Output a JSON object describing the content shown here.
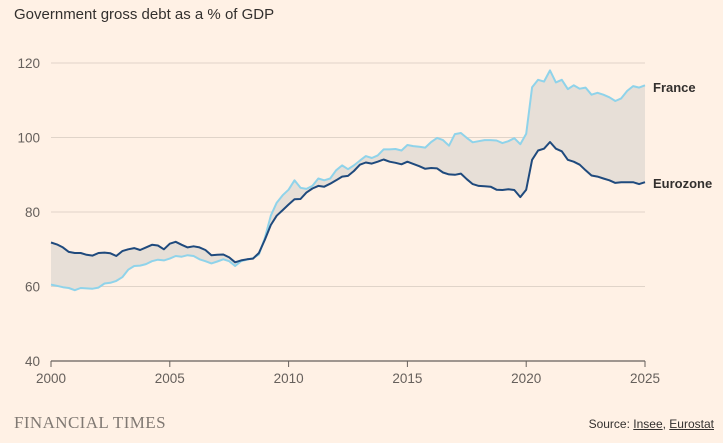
{
  "colors": {
    "background": "#FFF1E5",
    "france": "#8FD3EA",
    "eurozone": "#1F4A7D",
    "fill": "#E7DFD7",
    "grid": "#E0D4C9",
    "axis": "#66605C"
  },
  "footer": {
    "brand": "FINANCIAL TIMES",
    "source_prefix": "Source: ",
    "source_insee": "Insee",
    "source_sep": ", ",
    "source_eurostat": "Eurostat"
  },
  "chart_data": {
    "type": "line",
    "title": "Government gross debt as a % of GDP",
    "xlabel": "",
    "ylabel": "",
    "xlim": [
      2000,
      2025
    ],
    "ylim": [
      40,
      120
    ],
    "x_ticks": [
      2000,
      2005,
      2010,
      2015,
      2020,
      2025
    ],
    "y_ticks": [
      40,
      60,
      80,
      100,
      120
    ],
    "grid": true,
    "x": [
      2000.0,
      2000.25,
      2000.5,
      2000.75,
      2001.0,
      2001.25,
      2001.5,
      2001.75,
      2002.0,
      2002.25,
      2002.5,
      2002.75,
      2003.0,
      2003.25,
      2003.5,
      2003.75,
      2004.0,
      2004.25,
      2004.5,
      2004.75,
      2005.0,
      2005.25,
      2005.5,
      2005.75,
      2006.0,
      2006.25,
      2006.5,
      2006.75,
      2007.0,
      2007.25,
      2007.5,
      2007.75,
      2008.0,
      2008.25,
      2008.5,
      2008.75,
      2009.0,
      2009.25,
      2009.5,
      2009.75,
      2010.0,
      2010.25,
      2010.5,
      2010.75,
      2011.0,
      2011.25,
      2011.5,
      2011.75,
      2012.0,
      2012.25,
      2012.5,
      2012.75,
      2013.0,
      2013.25,
      2013.5,
      2013.75,
      2014.0,
      2014.25,
      2014.5,
      2014.75,
      2015.0,
      2015.25,
      2015.5,
      2015.75,
      2016.0,
      2016.25,
      2016.5,
      2016.75,
      2017.0,
      2017.25,
      2017.5,
      2017.75,
      2018.0,
      2018.25,
      2018.5,
      2018.75,
      2019.0,
      2019.25,
      2019.5,
      2019.75,
      2020.0,
      2020.25,
      2020.5,
      2020.75,
      2021.0,
      2021.25,
      2021.5,
      2021.75,
      2022.0,
      2022.25,
      2022.5,
      2022.75,
      2023.0,
      2023.25,
      2023.5,
      2023.75,
      2024.0,
      2024.25,
      2024.5,
      2024.75,
      2025.0
    ],
    "series": [
      {
        "name": "France",
        "values": [
          60.5,
          60.2,
          59.8,
          59.6,
          59.0,
          59.6,
          59.5,
          59.4,
          59.7,
          60.8,
          61.0,
          61.5,
          62.5,
          64.5,
          65.5,
          65.6,
          66.0,
          66.8,
          67.2,
          67.0,
          67.5,
          68.2,
          68.0,
          68.4,
          68.2,
          67.3,
          66.8,
          66.2,
          66.7,
          67.3,
          66.8,
          65.5,
          66.8,
          67.2,
          67.6,
          68.6,
          73.0,
          79.0,
          82.5,
          84.5,
          86.0,
          88.5,
          86.5,
          86.2,
          87.0,
          89.0,
          88.5,
          89.0,
          91.2,
          92.5,
          91.5,
          92.5,
          93.8,
          95.0,
          94.5,
          95.2,
          96.8,
          96.8,
          96.9,
          96.5,
          98.0,
          97.7,
          97.5,
          97.3,
          98.8,
          99.9,
          99.3,
          97.8,
          100.9,
          101.2,
          99.9,
          98.7,
          99.0,
          99.3,
          99.3,
          99.2,
          98.5,
          99.0,
          99.8,
          98.2,
          101.0,
          113.5,
          115.5,
          115.0,
          118.0,
          114.8,
          115.5,
          113.0,
          114.0,
          113.1,
          113.4,
          111.5,
          112.0,
          111.5,
          110.8,
          109.8,
          110.5,
          112.5,
          113.8,
          113.4,
          114.0
        ]
      },
      {
        "name": "Eurozone",
        "values": [
          71.8,
          71.3,
          70.5,
          69.3,
          69.0,
          69.0,
          68.5,
          68.3,
          69.0,
          69.1,
          68.9,
          68.2,
          69.5,
          70.0,
          70.3,
          69.8,
          70.5,
          71.2,
          71.0,
          70.0,
          71.5,
          72.0,
          71.2,
          70.5,
          70.8,
          70.5,
          69.8,
          68.4,
          68.5,
          68.6,
          67.8,
          66.5,
          67.0,
          67.3,
          67.5,
          69.0,
          72.5,
          76.5,
          79.0,
          80.5,
          82.0,
          83.4,
          83.5,
          85.2,
          86.3,
          87.0,
          86.8,
          87.6,
          88.5,
          89.5,
          89.7,
          91.0,
          92.7,
          93.3,
          93.0,
          93.5,
          94.1,
          93.5,
          93.2,
          92.8,
          93.5,
          92.9,
          92.3,
          91.6,
          91.8,
          91.7,
          90.6,
          90.1,
          90.0,
          90.3,
          88.8,
          87.5,
          87.0,
          86.9,
          86.8,
          86.0,
          85.9,
          86.1,
          85.9,
          84.0,
          86.0,
          94.0,
          96.5,
          97.0,
          98.8,
          97.0,
          96.3,
          94.0,
          93.5,
          92.7,
          91.2,
          89.8,
          89.5,
          89.0,
          88.5,
          87.8,
          88.0,
          88.0,
          88.0,
          87.5,
          88.0
        ]
      }
    ],
    "series_labels": {
      "france": "France",
      "eurozone": "Eurozone"
    }
  }
}
